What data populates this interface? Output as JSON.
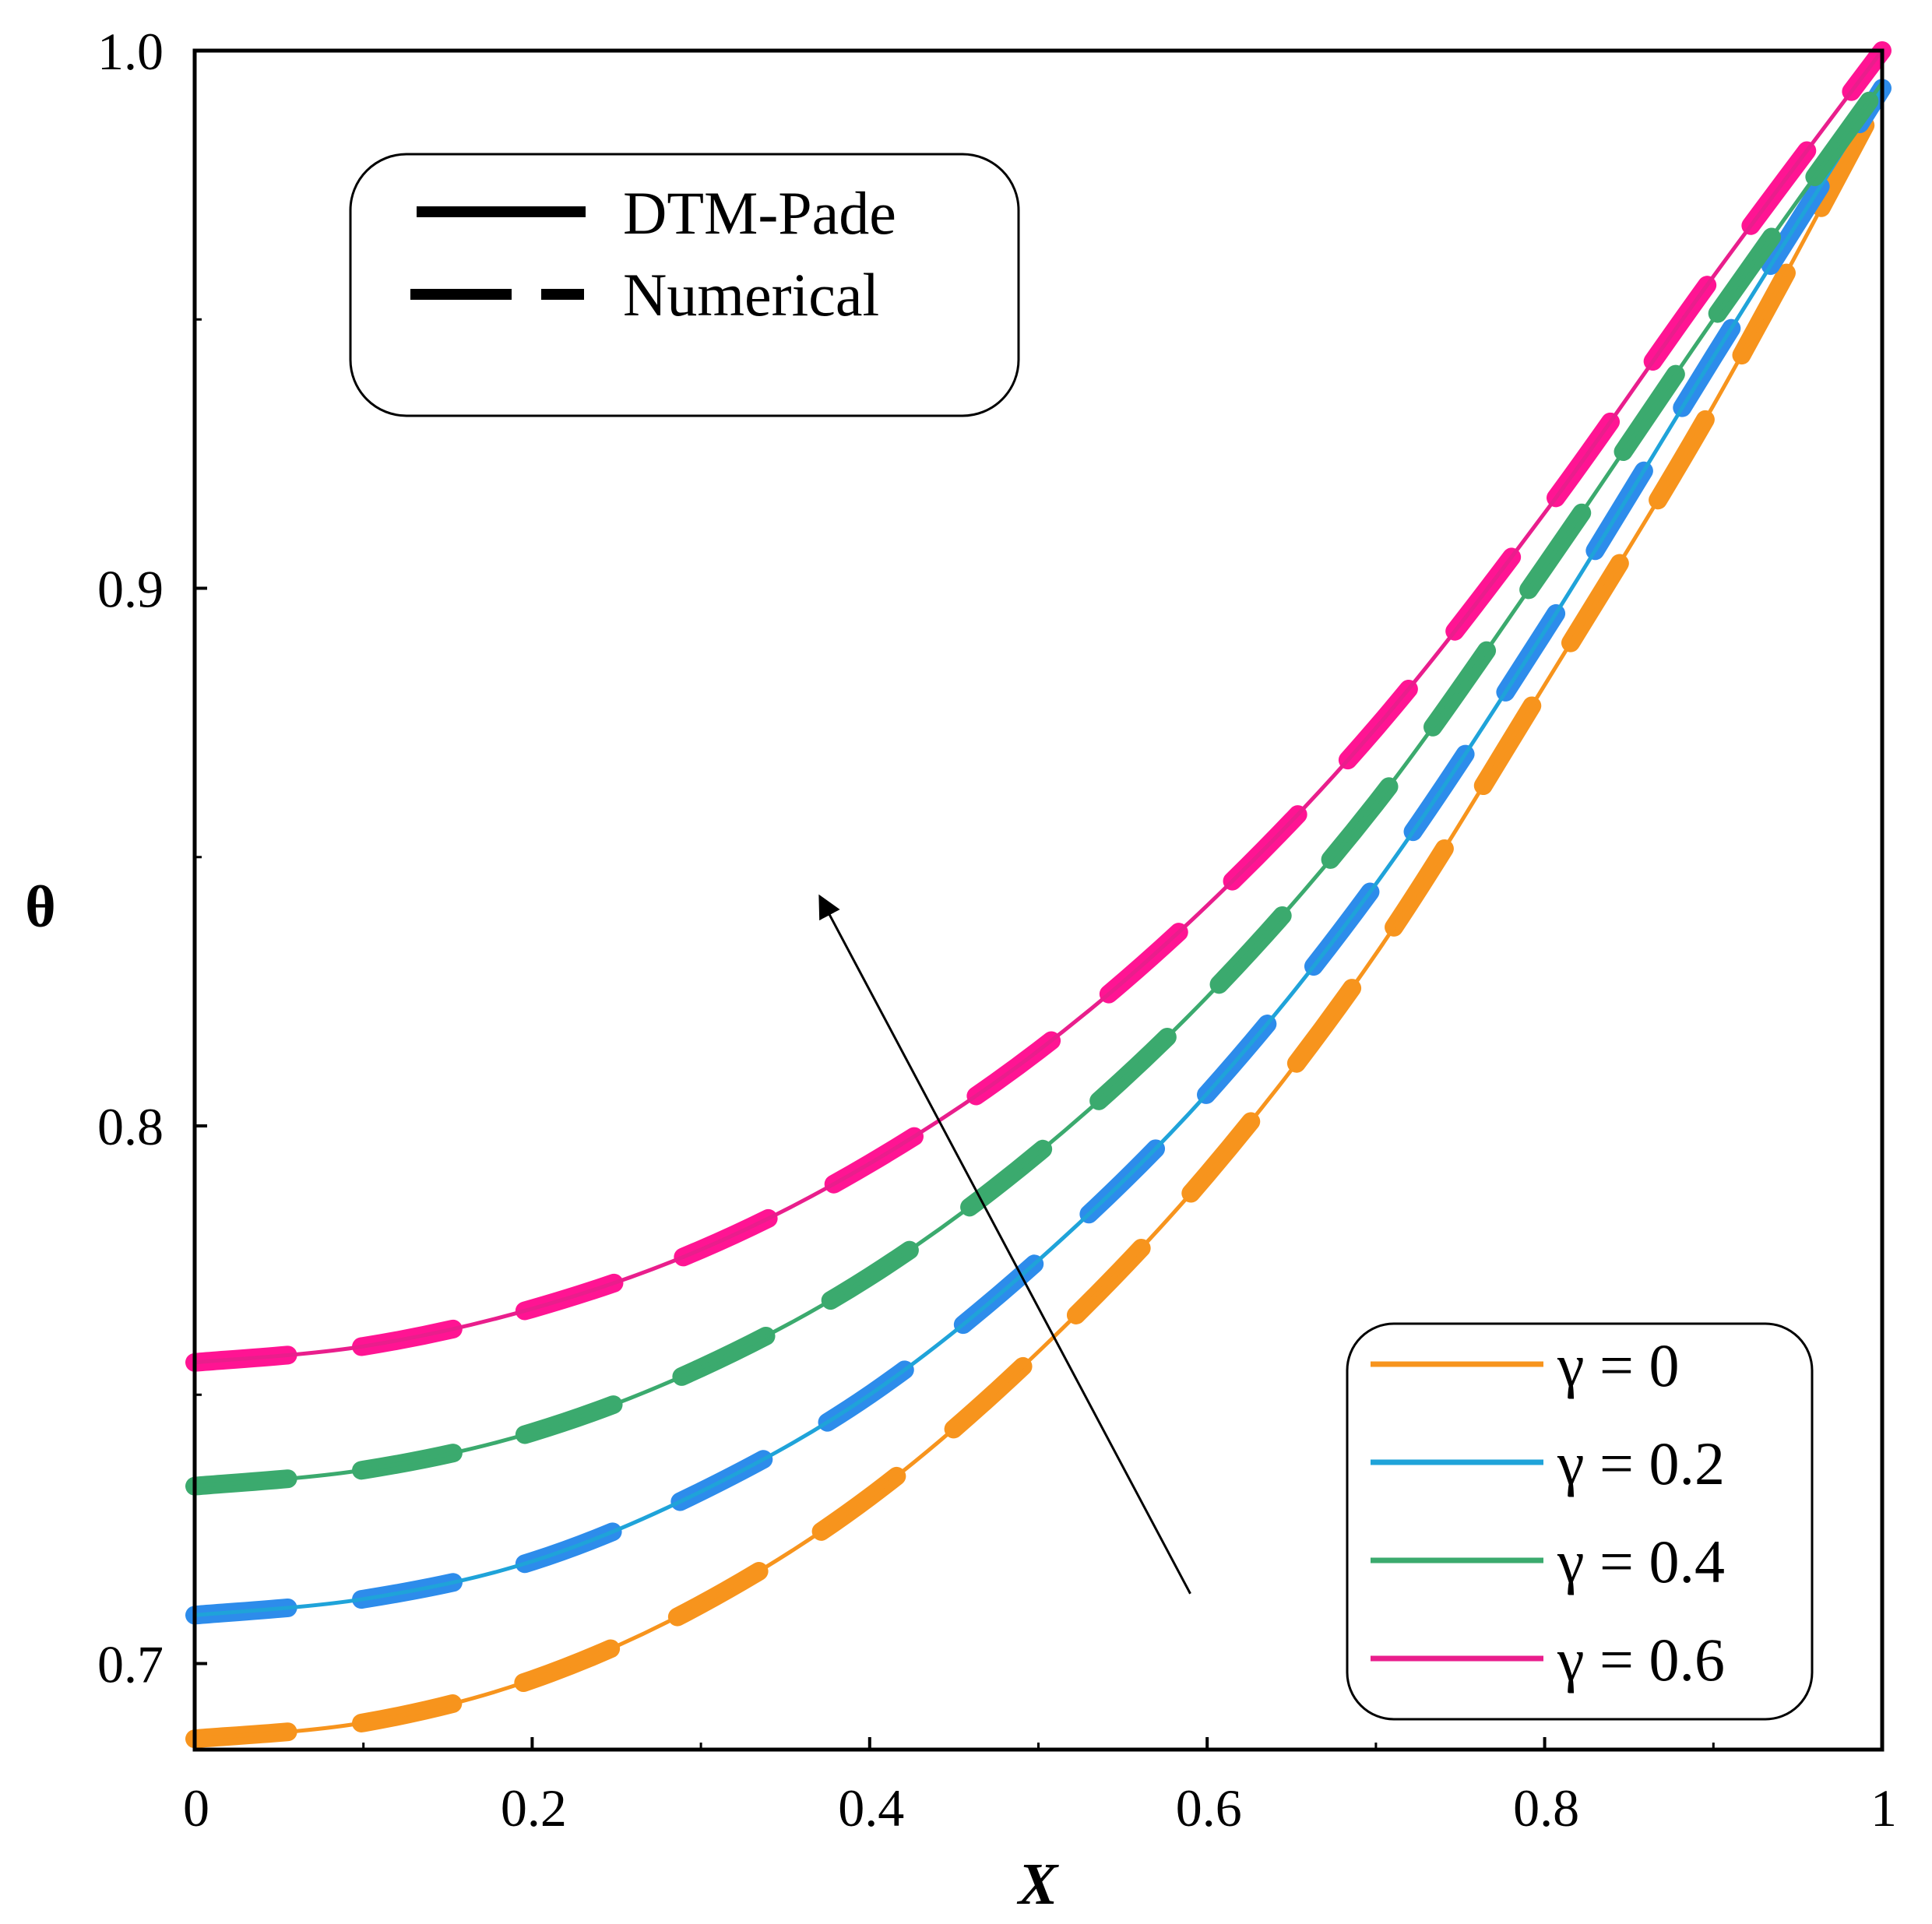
{
  "chart_data": {
    "type": "line",
    "title": "",
    "xlabel": "X",
    "ylabel": "θ",
    "xlim": [
      0,
      1
    ],
    "ylim": [
      0.684,
      1.0
    ],
    "xticks": [
      0,
      0.2,
      0.4,
      0.6,
      0.8,
      1
    ],
    "xtick_labels": [
      "0",
      "0.2",
      "0.4",
      "0.6",
      "0.8",
      "1"
    ],
    "yticks": [
      0.7,
      0.8,
      0.9,
      1.0
    ],
    "ytick_labels": [
      "0.7",
      "0.8",
      "0.9",
      "1.0"
    ],
    "x": [
      0,
      0.1,
      0.2,
      0.3,
      0.4,
      0.5,
      0.6,
      0.7,
      0.8,
      0.9,
      1.0
    ],
    "series": [
      {
        "name": "γ = 0",
        "gamma": 0,
        "color": "#F7941D",
        "numeric_color": "#F7941D",
        "values": [
          0.686,
          0.689,
          0.697,
          0.711,
          0.731,
          0.758,
          0.791,
          0.832,
          0.882,
          0.934,
          0.992
        ]
      },
      {
        "name": "γ = 0.2",
        "gamma": 0.2,
        "color": "#1FA3D9",
        "numeric_color": "#2D8CEB",
        "values": [
          0.709,
          0.712,
          0.719,
          0.732,
          0.75,
          0.775,
          0.806,
          0.845,
          0.892,
          0.943,
          0.993
        ]
      },
      {
        "name": "γ = 0.4",
        "gamma": 0.4,
        "color": "#3BAA6E",
        "numeric_color": "#3BAA6E",
        "values": [
          0.733,
          0.736,
          0.743,
          0.755,
          0.772,
          0.795,
          0.824,
          0.86,
          0.904,
          0.95,
          0.994
        ]
      },
      {
        "name": "γ = 0.6",
        "gamma": 0.6,
        "color": "#E91E8C",
        "numeric_color": "#FF1493",
        "values": [
          0.756,
          0.759,
          0.766,
          0.777,
          0.793,
          0.814,
          0.841,
          0.874,
          0.914,
          0.958,
          1.0
        ]
      }
    ],
    "method_legend": [
      {
        "label": "DTM-Pade",
        "style": "solid"
      },
      {
        "label": "Numerical",
        "style": "dashed"
      }
    ],
    "annotation": {
      "type": "arrow",
      "meaning": "increasing γ",
      "from": [
        0.59,
        0.713
      ],
      "to": [
        0.375,
        0.84
      ]
    },
    "legend_placement": "bottom-right",
    "method_legend_placement": "top-left",
    "grid": false
  }
}
